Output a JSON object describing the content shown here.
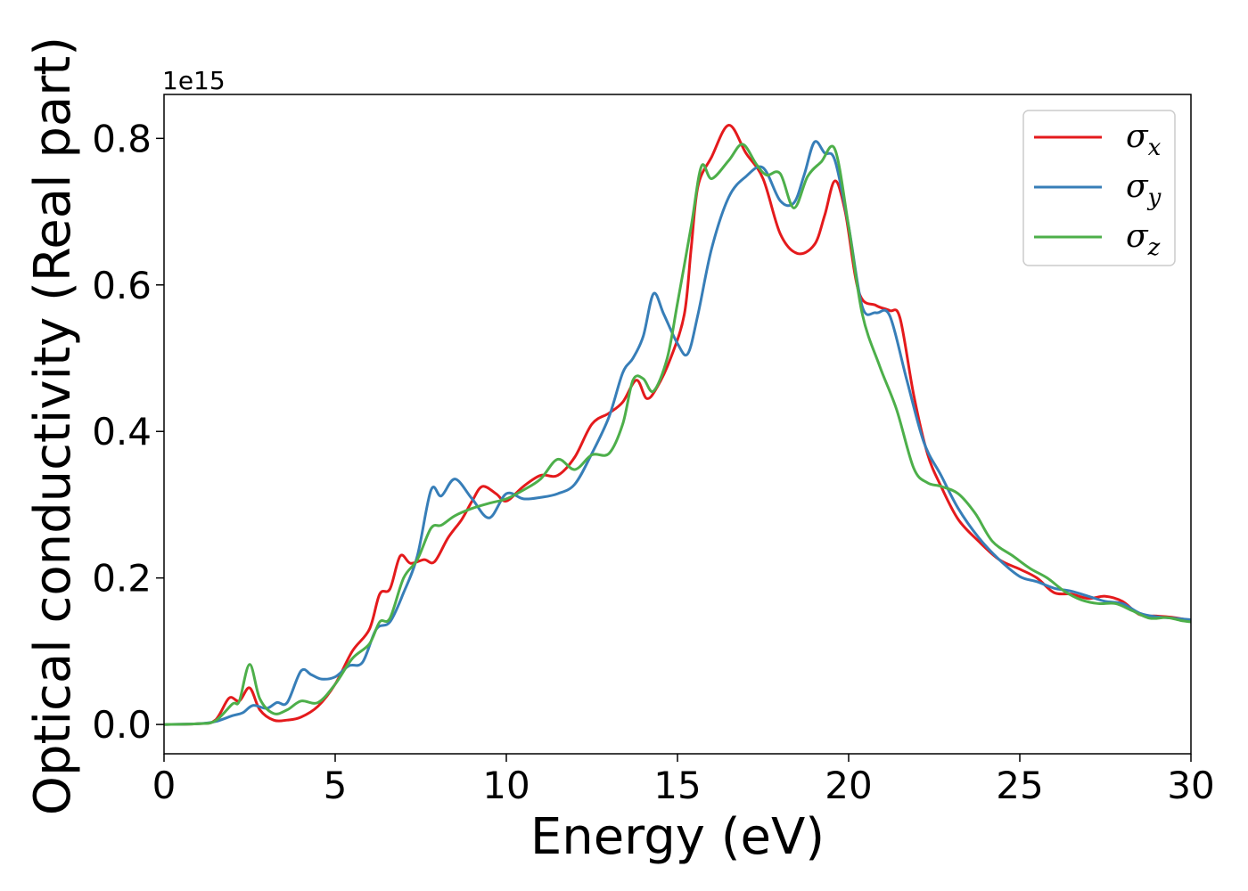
{
  "chart_data": {
    "type": "line",
    "title": "",
    "xlabel": "Energy (eV)",
    "ylabel": "Optical conductivity (Real part)",
    "y_offset_text": "1e15",
    "y_scale": 1000000000000000.0,
    "xlim": [
      0,
      30
    ],
    "ylim": [
      -0.04,
      0.86
    ],
    "xticks": [
      0,
      5,
      10,
      15,
      20,
      25,
      30
    ],
    "xtick_labels": [
      "0",
      "5",
      "10",
      "15",
      "20",
      "25",
      "30"
    ],
    "yticks": [
      0.0,
      0.2,
      0.4,
      0.6,
      0.8
    ],
    "ytick_labels": [
      "0.0",
      "0.2",
      "0.4",
      "0.6",
      "0.8"
    ],
    "grid": false,
    "legend_position": "top-right",
    "series": [
      {
        "name": "σx",
        "base": "σ",
        "sub": "x",
        "color": "#e41a1c",
        "points": [
          [
            0,
            0.0
          ],
          [
            1,
            0.001
          ],
          [
            1.5,
            0.006
          ],
          [
            1.9,
            0.036
          ],
          [
            2.2,
            0.032
          ],
          [
            2.5,
            0.05
          ],
          [
            2.8,
            0.02
          ],
          [
            3.2,
            0.006
          ],
          [
            3.6,
            0.006
          ],
          [
            4,
            0.01
          ],
          [
            4.5,
            0.025
          ],
          [
            5,
            0.055
          ],
          [
            5.5,
            0.1
          ],
          [
            6,
            0.13
          ],
          [
            6.3,
            0.178
          ],
          [
            6.6,
            0.185
          ],
          [
            6.9,
            0.23
          ],
          [
            7.2,
            0.22
          ],
          [
            7.6,
            0.225
          ],
          [
            7.9,
            0.222
          ],
          [
            8.3,
            0.255
          ],
          [
            8.7,
            0.28
          ],
          [
            9.0,
            0.305
          ],
          [
            9.3,
            0.325
          ],
          [
            9.7,
            0.315
          ],
          [
            10,
            0.305
          ],
          [
            10.5,
            0.325
          ],
          [
            11,
            0.34
          ],
          [
            11.5,
            0.34
          ],
          [
            12,
            0.365
          ],
          [
            12.5,
            0.41
          ],
          [
            13,
            0.425
          ],
          [
            13.4,
            0.44
          ],
          [
            13.8,
            0.47
          ],
          [
            14.1,
            0.445
          ],
          [
            14.4,
            0.46
          ],
          [
            14.8,
            0.5
          ],
          [
            15.2,
            0.56
          ],
          [
            15.4,
            0.65
          ],
          [
            15.6,
            0.735
          ],
          [
            16,
            0.775
          ],
          [
            16.5,
            0.818
          ],
          [
            17,
            0.78
          ],
          [
            17.5,
            0.745
          ],
          [
            18,
            0.67
          ],
          [
            18.5,
            0.643
          ],
          [
            19,
            0.655
          ],
          [
            19.3,
            0.695
          ],
          [
            19.6,
            0.742
          ],
          [
            19.9,
            0.7
          ],
          [
            20.3,
            0.59
          ],
          [
            20.8,
            0.572
          ],
          [
            21.2,
            0.565
          ],
          [
            21.5,
            0.555
          ],
          [
            21.9,
            0.45
          ],
          [
            22.3,
            0.37
          ],
          [
            22.7,
            0.325
          ],
          [
            23.2,
            0.28
          ],
          [
            23.8,
            0.25
          ],
          [
            24.4,
            0.225
          ],
          [
            25,
            0.212
          ],
          [
            25.5,
            0.2
          ],
          [
            26,
            0.18
          ],
          [
            26.5,
            0.178
          ],
          [
            27,
            0.172
          ],
          [
            27.5,
            0.175
          ],
          [
            28,
            0.168
          ],
          [
            28.5,
            0.15
          ],
          [
            29,
            0.148
          ],
          [
            29.5,
            0.146
          ],
          [
            30,
            0.142
          ]
        ]
      },
      {
        "name": "σy",
        "base": "σ",
        "sub": "y",
        "color": "#377eb8",
        "points": [
          [
            0,
            0.0
          ],
          [
            1,
            0.001
          ],
          [
            1.5,
            0.004
          ],
          [
            2,
            0.012
          ],
          [
            2.3,
            0.016
          ],
          [
            2.6,
            0.026
          ],
          [
            3,
            0.022
          ],
          [
            3.3,
            0.03
          ],
          [
            3.6,
            0.03
          ],
          [
            4,
            0.073
          ],
          [
            4.3,
            0.068
          ],
          [
            4.6,
            0.062
          ],
          [
            5,
            0.065
          ],
          [
            5.4,
            0.08
          ],
          [
            5.8,
            0.085
          ],
          [
            6.2,
            0.13
          ],
          [
            6.6,
            0.14
          ],
          [
            7,
            0.18
          ],
          [
            7.4,
            0.23
          ],
          [
            7.8,
            0.32
          ],
          [
            8.1,
            0.312
          ],
          [
            8.5,
            0.335
          ],
          [
            9,
            0.308
          ],
          [
            9.5,
            0.282
          ],
          [
            10,
            0.315
          ],
          [
            10.5,
            0.308
          ],
          [
            11,
            0.31
          ],
          [
            11.5,
            0.315
          ],
          [
            12,
            0.328
          ],
          [
            12.5,
            0.37
          ],
          [
            13,
            0.42
          ],
          [
            13.4,
            0.48
          ],
          [
            13.7,
            0.5
          ],
          [
            14,
            0.53
          ],
          [
            14.3,
            0.588
          ],
          [
            14.6,
            0.56
          ],
          [
            15,
            0.52
          ],
          [
            15.3,
            0.506
          ],
          [
            15.6,
            0.56
          ],
          [
            16,
            0.65
          ],
          [
            16.5,
            0.72
          ],
          [
            17,
            0.748
          ],
          [
            17.5,
            0.76
          ],
          [
            18,
            0.715
          ],
          [
            18.4,
            0.712
          ],
          [
            18.7,
            0.75
          ],
          [
            19,
            0.795
          ],
          [
            19.3,
            0.78
          ],
          [
            19.6,
            0.77
          ],
          [
            20,
            0.68
          ],
          [
            20.4,
            0.57
          ],
          [
            20.8,
            0.562
          ],
          [
            21.2,
            0.558
          ],
          [
            21.7,
            0.47
          ],
          [
            22.2,
            0.385
          ],
          [
            22.7,
            0.34
          ],
          [
            23.2,
            0.295
          ],
          [
            23.8,
            0.255
          ],
          [
            24.4,
            0.225
          ],
          [
            25,
            0.202
          ],
          [
            25.5,
            0.195
          ],
          [
            26,
            0.186
          ],
          [
            26.5,
            0.182
          ],
          [
            27,
            0.175
          ],
          [
            27.5,
            0.168
          ],
          [
            28,
            0.165
          ],
          [
            28.5,
            0.152
          ],
          [
            29,
            0.147
          ],
          [
            29.5,
            0.145
          ],
          [
            30,
            0.143
          ]
        ]
      },
      {
        "name": "σz",
        "base": "σ",
        "sub": "z",
        "color": "#4daf4a",
        "points": [
          [
            0,
            0.0
          ],
          [
            1,
            0.001
          ],
          [
            1.5,
            0.005
          ],
          [
            2,
            0.028
          ],
          [
            2.2,
            0.032
          ],
          [
            2.5,
            0.082
          ],
          [
            2.8,
            0.035
          ],
          [
            3.2,
            0.015
          ],
          [
            3.6,
            0.02
          ],
          [
            4,
            0.032
          ],
          [
            4.5,
            0.03
          ],
          [
            5,
            0.055
          ],
          [
            5.5,
            0.09
          ],
          [
            6,
            0.11
          ],
          [
            6.3,
            0.14
          ],
          [
            6.6,
            0.145
          ],
          [
            7,
            0.2
          ],
          [
            7.4,
            0.225
          ],
          [
            7.8,
            0.268
          ],
          [
            8.1,
            0.272
          ],
          [
            8.5,
            0.285
          ],
          [
            9,
            0.295
          ],
          [
            9.5,
            0.302
          ],
          [
            10,
            0.308
          ],
          [
            10.5,
            0.32
          ],
          [
            11,
            0.335
          ],
          [
            11.5,
            0.362
          ],
          [
            12,
            0.348
          ],
          [
            12.5,
            0.368
          ],
          [
            13,
            0.37
          ],
          [
            13.4,
            0.41
          ],
          [
            13.7,
            0.47
          ],
          [
            14,
            0.472
          ],
          [
            14.3,
            0.455
          ],
          [
            14.7,
            0.5
          ],
          [
            15,
            0.575
          ],
          [
            15.4,
            0.68
          ],
          [
            15.7,
            0.762
          ],
          [
            16,
            0.745
          ],
          [
            16.5,
            0.77
          ],
          [
            16.9,
            0.792
          ],
          [
            17.3,
            0.765
          ],
          [
            17.6,
            0.75
          ],
          [
            18,
            0.752
          ],
          [
            18.4,
            0.705
          ],
          [
            18.8,
            0.748
          ],
          [
            19.2,
            0.768
          ],
          [
            19.6,
            0.785
          ],
          [
            20,
            0.68
          ],
          [
            20.4,
            0.56
          ],
          [
            20.9,
            0.49
          ],
          [
            21.4,
            0.43
          ],
          [
            21.9,
            0.35
          ],
          [
            22.3,
            0.33
          ],
          [
            22.7,
            0.325
          ],
          [
            23.2,
            0.315
          ],
          [
            23.7,
            0.288
          ],
          [
            24.2,
            0.25
          ],
          [
            24.8,
            0.23
          ],
          [
            25.3,
            0.213
          ],
          [
            25.8,
            0.2
          ],
          [
            26.3,
            0.182
          ],
          [
            26.8,
            0.17
          ],
          [
            27.3,
            0.165
          ],
          [
            27.8,
            0.165
          ],
          [
            28.3,
            0.155
          ],
          [
            28.8,
            0.145
          ],
          [
            29.3,
            0.146
          ],
          [
            29.7,
            0.142
          ],
          [
            30,
            0.14
          ]
        ]
      }
    ]
  }
}
